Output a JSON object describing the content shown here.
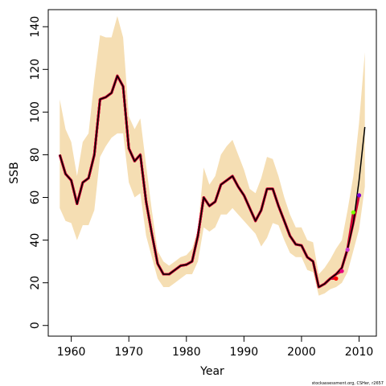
{
  "chart_data": {
    "type": "line",
    "title": "",
    "xlabel": "Year",
    "ylabel": "SSB",
    "xlim": [
      1956,
      2013
    ],
    "ylim": [
      -5,
      148
    ],
    "x_ticks": [
      1960,
      1970,
      1980,
      1990,
      2000,
      2010
    ],
    "y_ticks": [
      0,
      20,
      40,
      60,
      80,
      100,
      120,
      140
    ],
    "grid": false,
    "legend": "none",
    "credit": "stockassessment.org, CSHer, r2657",
    "colors": {
      "band": "#f5deb3",
      "main_line": "#000000",
      "retro_line": "#cc0033",
      "retro_colors": [
        "#ff0000",
        "#e6007e",
        "#cc33cc",
        "#7fff00",
        "#7b00d6"
      ]
    },
    "series": [
      {
        "type": "band",
        "x": [
          1958,
          1959,
          1960,
          1961,
          1962,
          1963,
          1964,
          1965,
          1966,
          1967,
          1968,
          1969,
          1970,
          1971,
          1972,
          1973,
          1974,
          1975,
          1976,
          1977,
          1978,
          1979,
          1980,
          1981,
          1982,
          1983,
          1984,
          1985,
          1986,
          1987,
          1988,
          1989,
          1990,
          1991,
          1992,
          1993,
          1994,
          1995,
          1996,
          1997,
          1998,
          1999,
          2000,
          2001,
          2002,
          2003,
          2004,
          2005,
          2006,
          2007,
          2008,
          2009,
          2010,
          2011
        ],
        "lower": [
          55,
          49,
          48,
          40,
          47,
          47,
          54,
          79,
          84,
          88,
          90,
          90,
          67,
          60,
          62,
          42,
          32,
          22,
          18,
          18,
          20,
          22,
          24,
          24,
          30,
          46,
          44,
          46,
          52,
          52,
          55,
          52,
          49,
          46,
          43,
          37,
          41,
          48,
          47,
          40,
          34,
          32,
          32,
          26,
          25,
          14,
          15,
          17,
          18,
          20,
          25,
          35,
          45,
          65
        ],
        "upper": [
          106,
          92,
          86,
          70,
          86,
          90,
          115,
          136,
          135,
          135,
          145,
          135,
          98,
          92,
          97,
          75,
          54,
          35,
          30,
          28,
          30,
          32,
          33,
          36,
          45,
          74,
          66,
          70,
          80,
          84,
          87,
          80,
          73,
          64,
          62,
          69,
          79,
          78,
          70,
          60,
          52,
          46,
          46,
          40,
          39,
          24,
          27,
          31,
          36,
          40,
          54,
          70,
          95,
          128
        ]
      },
      {
        "type": "line",
        "x": [
          1958,
          1959,
          1960,
          1961,
          1962,
          1963,
          1964,
          1965,
          1966,
          1967,
          1968,
          1969,
          1970,
          1971,
          1972,
          1973,
          1974,
          1975,
          1976,
          1977,
          1978,
          1979,
          1980,
          1981,
          1982,
          1983,
          1984,
          1985,
          1986,
          1987,
          1988,
          1989,
          1990,
          1991,
          1992,
          1993,
          1994,
          1995,
          1996,
          1997,
          1998,
          1999,
          2000,
          2001,
          2002,
          2003,
          2004,
          2005,
          2006,
          2007,
          2008,
          2009,
          2010,
          2011
        ],
        "values": [
          80,
          71,
          68,
          57,
          67,
          69,
          80,
          106,
          107,
          109,
          117,
          112,
          83,
          77,
          80,
          58,
          43,
          29,
          24,
          24,
          26,
          28,
          28.5,
          30,
          42,
          60,
          56,
          58,
          66,
          68,
          70,
          65,
          61,
          55,
          49,
          54,
          64,
          64,
          56,
          49,
          42,
          38,
          37.5,
          32,
          30,
          18,
          19.5,
          22,
          24,
          27,
          36,
          48,
          68,
          93
        ]
      },
      {
        "type": "retro_lines",
        "endpoints": [
          {
            "x": 2006,
            "y": 22
          },
          {
            "x": 2007,
            "y": 25.5
          },
          {
            "x": 2008,
            "y": 35.5
          },
          {
            "x": 2009,
            "y": 53
          },
          {
            "x": 2010,
            "y": 61
          }
        ]
      }
    ]
  }
}
